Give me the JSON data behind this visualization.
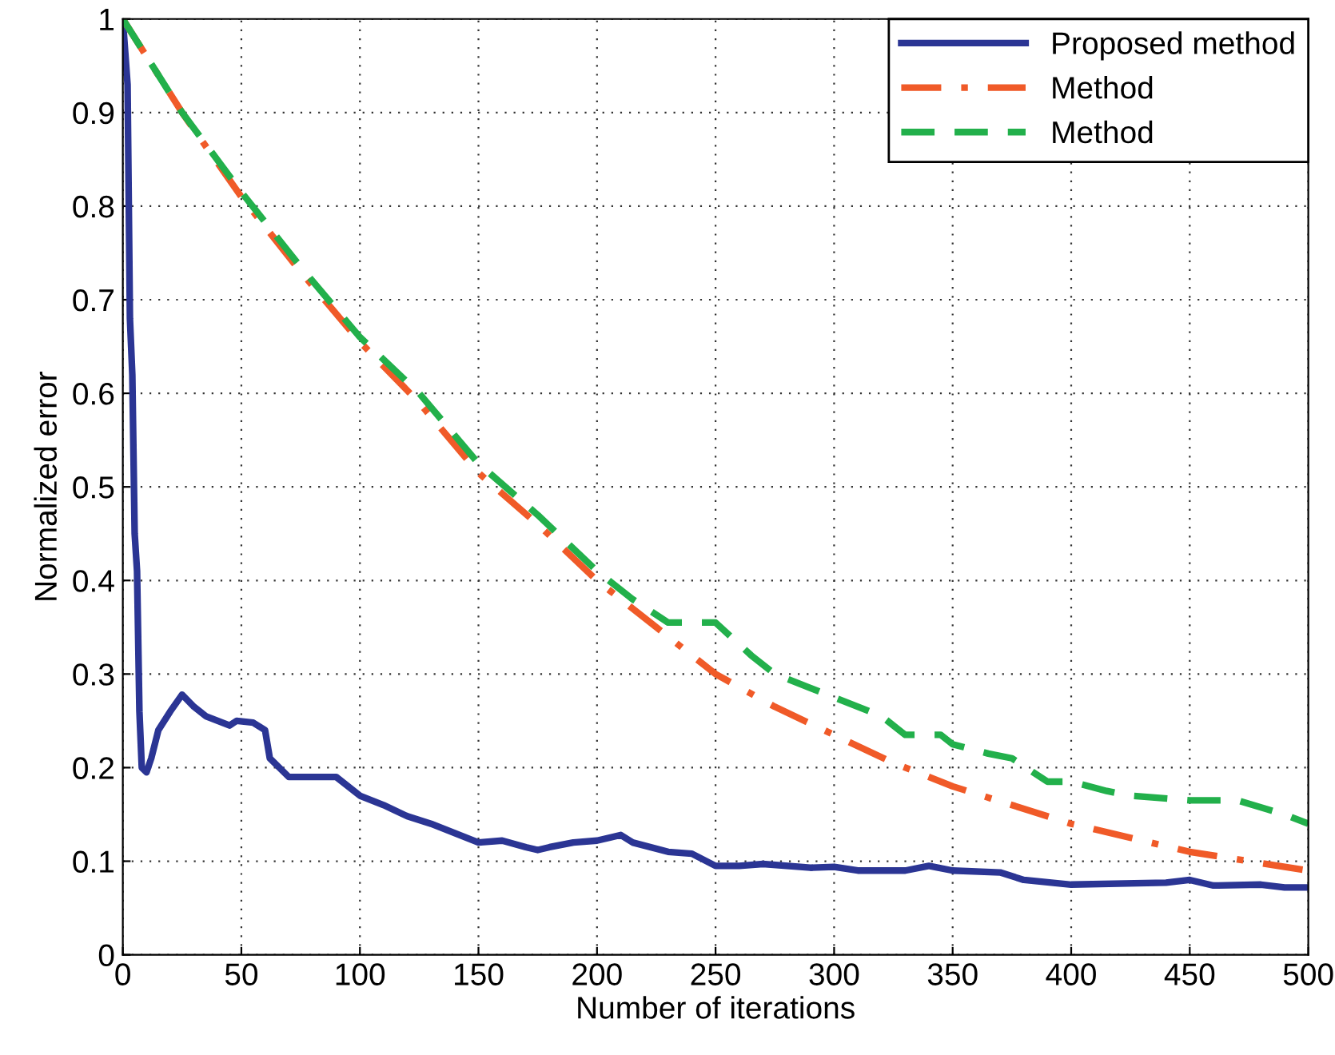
{
  "chart_data": {
    "type": "line",
    "xlabel": "Number of iterations",
    "ylabel": "Normalized error",
    "xlim": [
      0,
      500
    ],
    "ylim": [
      0,
      1
    ],
    "xticks": [
      0,
      50,
      100,
      150,
      200,
      250,
      300,
      350,
      400,
      450,
      500
    ],
    "yticks": [
      0,
      0.1,
      0.2,
      0.3,
      0.4,
      0.5,
      0.6,
      0.7,
      0.8,
      0.9,
      1
    ],
    "grid": true,
    "legend": "top right",
    "marker": "none",
    "series": [
      {
        "name": "Proposed method",
        "color": "#2b3594",
        "line_style": "solid",
        "x": [
          0,
          2,
          3,
          4,
          5,
          6,
          7,
          8,
          10,
          12,
          15,
          20,
          25,
          30,
          35,
          40,
          45,
          48,
          55,
          60,
          62,
          70,
          80,
          90,
          100,
          110,
          120,
          130,
          140,
          150,
          160,
          170,
          175,
          180,
          190,
          200,
          210,
          215,
          230,
          240,
          250,
          260,
          270,
          290,
          300,
          310,
          330,
          340,
          350,
          370,
          380,
          400,
          440,
          450,
          460,
          480,
          490,
          500
        ],
        "values": [
          1,
          0.93,
          0.68,
          0.62,
          0.45,
          0.41,
          0.26,
          0.2,
          0.195,
          0.21,
          0.24,
          0.26,
          0.278,
          0.265,
          0.255,
          0.25,
          0.245,
          0.25,
          0.248,
          0.24,
          0.21,
          0.19,
          0.19,
          0.19,
          0.17,
          0.16,
          0.148,
          0.14,
          0.13,
          0.12,
          0.122,
          0.115,
          0.112,
          0.115,
          0.12,
          0.122,
          0.128,
          0.12,
          0.11,
          0.108,
          0.095,
          0.095,
          0.097,
          0.093,
          0.094,
          0.09,
          0.09,
          0.095,
          0.09,
          0.088,
          0.08,
          0.075,
          0.077,
          0.08,
          0.074,
          0.075,
          0.072,
          0.072
        ]
      },
      {
        "name": "Method",
        "color": "#f05a28",
        "line_style": "dashdot",
        "x": [
          0,
          25,
          50,
          75,
          100,
          125,
          150,
          175,
          200,
          225,
          250,
          275,
          300,
          325,
          350,
          375,
          400,
          425,
          450,
          475,
          500
        ],
        "values": [
          1,
          0.9,
          0.81,
          0.73,
          0.655,
          0.59,
          0.515,
          0.46,
          0.4,
          0.35,
          0.3,
          0.265,
          0.235,
          0.205,
          0.18,
          0.16,
          0.14,
          0.125,
          0.11,
          0.1,
          0.09
        ]
      },
      {
        "name": "Method",
        "color": "#22b04b",
        "line_style": "dashed",
        "x": [
          0,
          25,
          50,
          75,
          100,
          125,
          150,
          175,
          200,
          215,
          230,
          250,
          265,
          275,
          290,
          300,
          320,
          330,
          345,
          350,
          365,
          375,
          390,
          400,
          415,
          425,
          450,
          470,
          490,
          500
        ],
        "values": [
          1,
          0.9,
          0.815,
          0.735,
          0.66,
          0.6,
          0.525,
          0.47,
          0.41,
          0.38,
          0.355,
          0.355,
          0.32,
          0.3,
          0.285,
          0.275,
          0.255,
          0.235,
          0.235,
          0.225,
          0.215,
          0.21,
          0.185,
          0.185,
          0.175,
          0.17,
          0.165,
          0.165,
          0.15,
          0.14
        ]
      }
    ]
  }
}
